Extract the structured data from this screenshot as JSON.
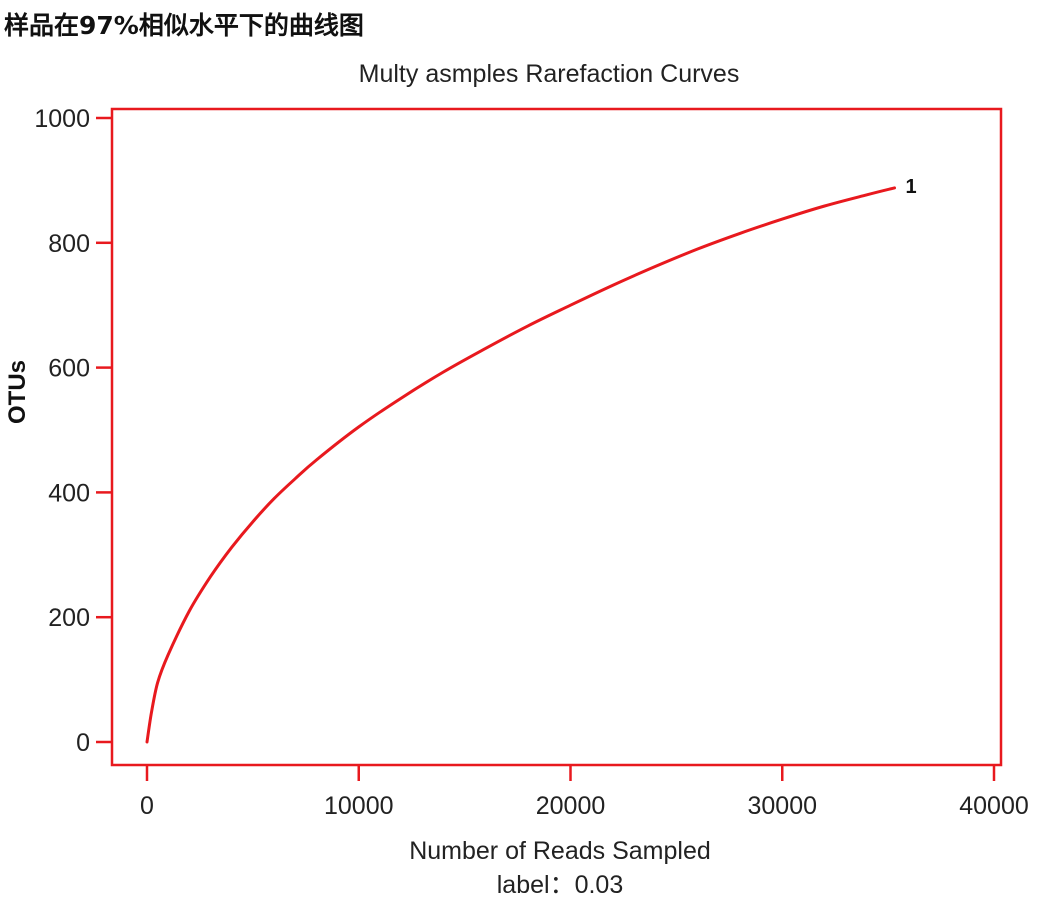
{
  "page": {
    "heading": "样品在97%相似水平下的曲线图"
  },
  "chart_data": {
    "type": "line",
    "title": "Multy asmples Rarefaction Curves",
    "xlabel": "Number of Reads Sampled",
    "xlabel_sub": "label：0.03",
    "ylabel": "OTUs",
    "xlim": [
      0,
      40000
    ],
    "ylim": [
      0,
      1000
    ],
    "x_ticks": [
      "0",
      "10000",
      "20000",
      "30000",
      "40000"
    ],
    "y_ticks": [
      "0",
      "200",
      "400",
      "600",
      "800",
      "1000"
    ],
    "grid": false,
    "colors": {
      "frame": "#e8191e",
      "series": "#e8191e"
    },
    "series": [
      {
        "name": "1",
        "x": [
          0,
          200,
          500,
          1000,
          2000,
          3000,
          4000,
          5000,
          6000,
          7000,
          8000,
          10000,
          12000,
          14000,
          16000,
          18000,
          20000,
          22000,
          24000,
          26000,
          28000,
          30000,
          32000,
          34000,
          35300
        ],
        "values": [
          0,
          45,
          95,
          140,
          210,
          265,
          312,
          353,
          390,
          422,
          452,
          505,
          551,
          593,
          631,
          667,
          700,
          732,
          762,
          790,
          815,
          838,
          859,
          877,
          888
        ]
      }
    ]
  }
}
